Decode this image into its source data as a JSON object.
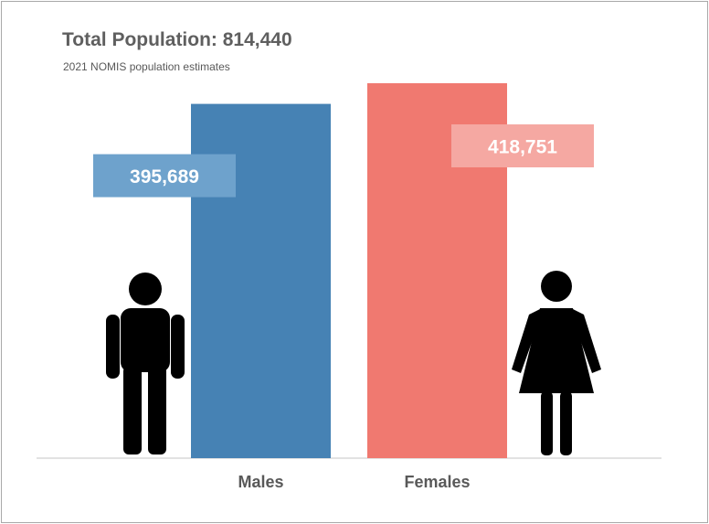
{
  "header": {
    "title": "Total Population: 814,440",
    "subtitle": "2021 NOMIS population estimates"
  },
  "icons": [
    "male-figure-icon",
    "female-figure-icon"
  ],
  "colors": {
    "males": "#4682b4",
    "females": "#f07970",
    "males_label_box": "#6ea2cc",
    "females_label_box": "#f5a8a2",
    "icon": "#000000",
    "baseline": "#d9d9d9"
  },
  "chart_data": {
    "type": "bar",
    "categories": [
      "Males",
      "Females"
    ],
    "values": [
      395689,
      418751
    ],
    "data_labels": [
      "395,689",
      "418,751"
    ],
    "title": "Total Population: 814,440",
    "subtitle": "2021 NOMIS population estimates",
    "xlabel": "",
    "ylabel": "",
    "ylim": [
      0,
      430000
    ],
    "grid": false,
    "legend": "none"
  }
}
